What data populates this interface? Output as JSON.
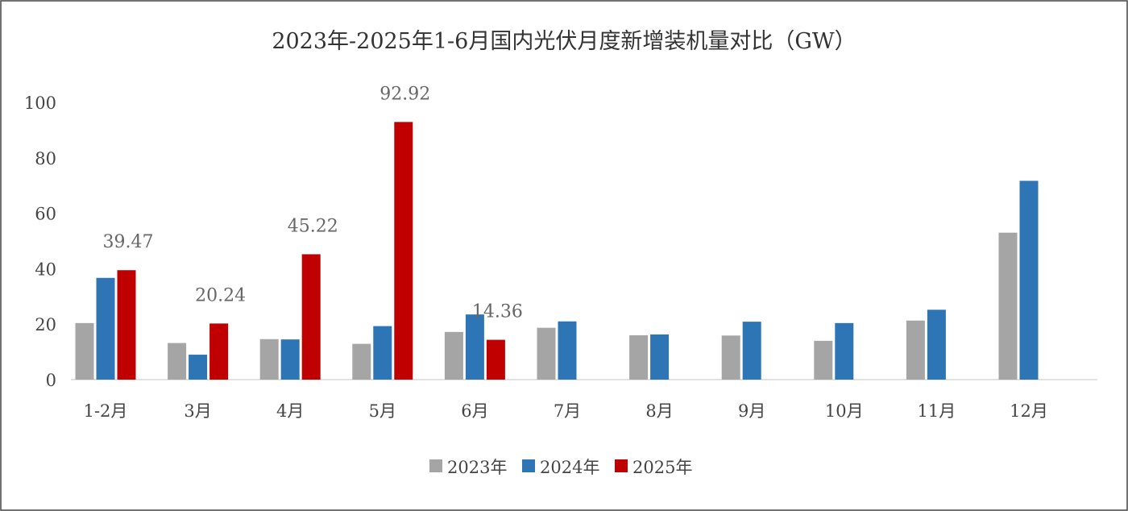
{
  "chart_data": {
    "type": "bar",
    "title": "2023年-2025年1-6月国内光伏月度新增装机量对比（GW）",
    "xlabel": "",
    "ylabel": "",
    "ylim": [
      0,
      100
    ],
    "yticks": [
      0,
      20,
      40,
      60,
      80,
      100
    ],
    "grid": false,
    "legend_position": "bottom",
    "categories": [
      "1-2月",
      "3月",
      "4月",
      "5月",
      "6月",
      "7月",
      "8月",
      "9月",
      "10月",
      "11月",
      "12月"
    ],
    "series": [
      {
        "name": "2023年",
        "color": "#a5a5a5",
        "values": [
          20.4,
          13.2,
          14.6,
          12.9,
          17.2,
          18.7,
          16.0,
          15.9,
          14.0,
          21.3,
          53.0
        ]
      },
      {
        "name": "2024年",
        "color": "#2e75b6",
        "values": [
          36.7,
          9.0,
          14.5,
          19.3,
          23.5,
          21.0,
          16.3,
          20.9,
          20.4,
          25.2,
          71.7
        ]
      },
      {
        "name": "2025年",
        "color": "#c00000",
        "values": [
          39.47,
          20.24,
          45.22,
          92.92,
          14.36,
          null,
          null,
          null,
          null,
          null,
          null
        ]
      }
    ],
    "data_labels": {
      "series": "2025年",
      "labels": [
        "39.47",
        "20.24",
        "45.22",
        "92.92",
        "14.36"
      ]
    }
  }
}
